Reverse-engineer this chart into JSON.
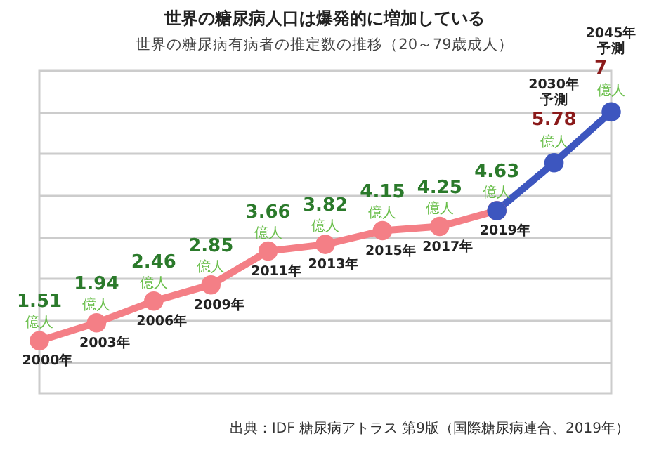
{
  "chart_data": {
    "type": "line",
    "title": "世界の糖尿病人口は爆発的に増加している",
    "subtitle": "世界の糖尿病有病者の推定数の推移（20～79歳成人）",
    "categories": [
      "2000年",
      "2003年",
      "2006年",
      "2009年",
      "2011年",
      "2013年",
      "2015年",
      "2017年",
      "2019年",
      "2030年予測",
      "2045年予測"
    ],
    "series": [
      {
        "color": "#f47f86",
        "values": [
          1.51,
          1.94,
          2.46,
          2.85,
          3.66,
          3.82,
          4.15,
          4.25,
          4.63,
          null,
          null
        ],
        "value_labels": [
          "1.51 億人",
          "1.94 億人",
          "2.46 億人",
          "2.85 億人",
          "3.66 億人",
          "3.82 億人",
          "4.15 億人",
          "4.25 億人",
          "4.63 億人",
          null,
          null
        ]
      },
      {
        "color": "#3d56bf",
        "values": [
          null,
          null,
          null,
          null,
          null,
          null,
          null,
          null,
          4.63,
          5.78,
          7
        ],
        "value_labels": [
          null,
          null,
          null,
          null,
          null,
          null,
          null,
          null,
          null,
          "5.78 億人",
          "7 億人"
        ]
      }
    ],
    "ylim": [
      0.25,
      8
    ],
    "grid": "y",
    "marker": "circle",
    "tick_labels": "x",
    "annotations": [
      "出典：IDF 糖尿病アトラス 第9版（国際糖尿病連合、2019年）"
    ]
  }
}
